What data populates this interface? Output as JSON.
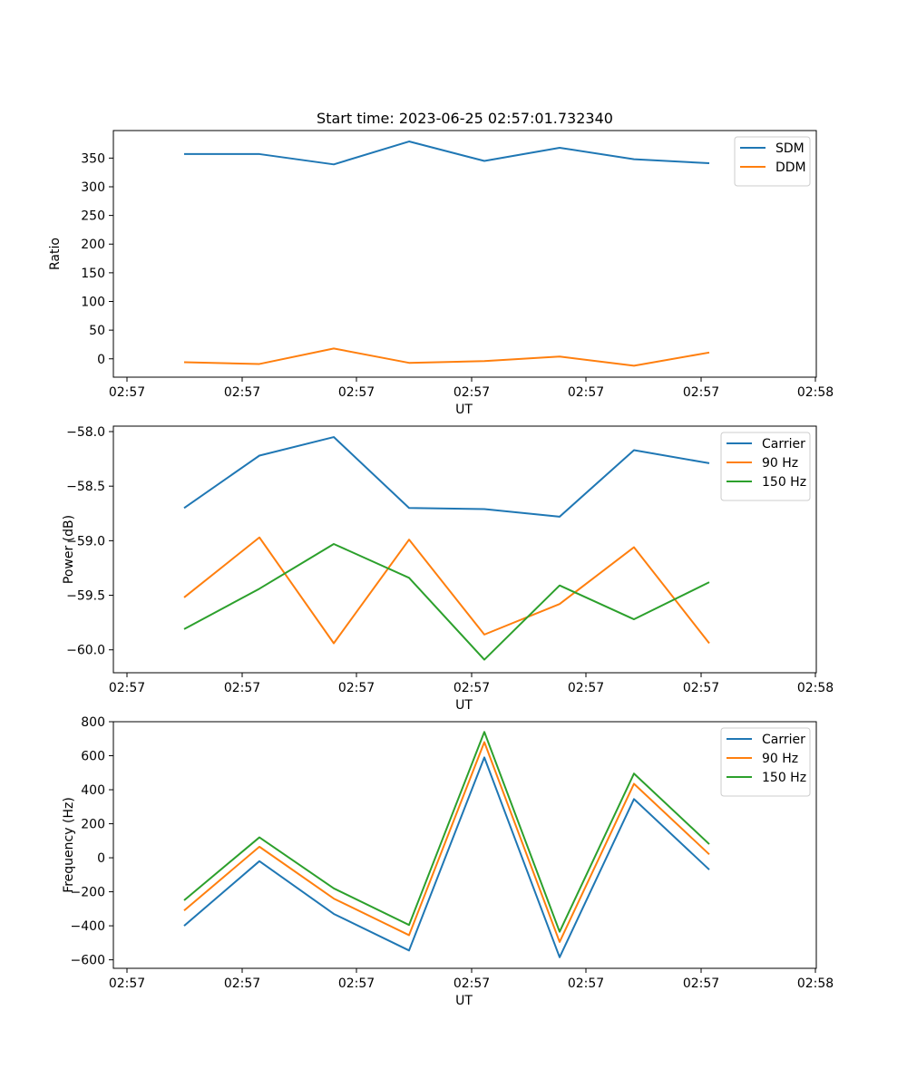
{
  "chart_data": [
    {
      "type": "line",
      "title": "Start time: 2023-06-25 02:57:01.732340",
      "xlabel": "UT",
      "ylabel": "Ratio",
      "x_tick_labels": [
        "02:57",
        "02:57",
        "02:57",
        "02:57",
        "02:57",
        "02:57",
        "02:58"
      ],
      "y_ticks": [
        0,
        50,
        100,
        150,
        200,
        250,
        300,
        350
      ],
      "ylim": [
        -32,
        398
      ],
      "grid": false,
      "legend": "top-right",
      "series": [
        {
          "name": "SDM",
          "color": "#1f77b4",
          "values": [
            357,
            357,
            339,
            379,
            345,
            368,
            348,
            341
          ]
        },
        {
          "name": "DDM",
          "color": "#ff7f0e",
          "values": [
            -6,
            -9,
            18,
            -7,
            -4,
            4,
            -12,
            11
          ]
        }
      ]
    },
    {
      "type": "line",
      "title": "",
      "xlabel": "UT",
      "ylabel": "Power (dB)",
      "x_tick_labels": [
        "02:57",
        "02:57",
        "02:57",
        "02:57",
        "02:57",
        "02:57",
        "02:58"
      ],
      "y_ticks": [
        -60.0,
        -59.5,
        -59.0,
        -58.5,
        -58.0
      ],
      "y_tick_labels": [
        "−60.0",
        "−59.5",
        "−59.0",
        "−58.5",
        "−58.0"
      ],
      "ylim": [
        -60.21,
        -57.95
      ],
      "grid": false,
      "legend": "top-right",
      "series": [
        {
          "name": "Carrier",
          "color": "#1f77b4",
          "values": [
            -58.7,
            -58.22,
            -58.05,
            -58.7,
            -58.71,
            -58.78,
            -58.17,
            -58.29
          ]
        },
        {
          "name": "90 Hz",
          "color": "#ff7f0e",
          "values": [
            -59.52,
            -58.97,
            -59.94,
            -58.99,
            -59.86,
            -59.58,
            -59.06,
            -59.94
          ]
        },
        {
          "name": "150 Hz",
          "color": "#2ca02c",
          "values": [
            -59.81,
            -59.44,
            -59.03,
            -59.34,
            -60.09,
            -59.41,
            -59.72,
            -59.38
          ]
        }
      ]
    },
    {
      "type": "line",
      "title": "",
      "xlabel": "UT",
      "ylabel": "Frequency (Hz)",
      "x_tick_labels": [
        "02:57",
        "02:57",
        "02:57",
        "02:57",
        "02:57",
        "02:57",
        "02:58"
      ],
      "y_ticks": [
        -600,
        -400,
        -200,
        0,
        200,
        400,
        600,
        800
      ],
      "y_tick_labels": [
        "−600",
        "−400",
        "−200",
        "0",
        "200",
        "400",
        "600",
        "800"
      ],
      "ylim": [
        -650,
        800
      ],
      "grid": false,
      "legend": "top-right",
      "series": [
        {
          "name": "Carrier",
          "color": "#1f77b4",
          "values": [
            -400,
            -20,
            -330,
            -545,
            590,
            -585,
            345,
            -70
          ]
        },
        {
          "name": "90 Hz",
          "color": "#ff7f0e",
          "values": [
            -310,
            65,
            -240,
            -455,
            680,
            -495,
            435,
            20
          ]
        },
        {
          "name": "150 Hz",
          "color": "#2ca02c",
          "values": [
            -250,
            120,
            -180,
            -395,
            740,
            -435,
            495,
            80
          ]
        }
      ]
    }
  ]
}
